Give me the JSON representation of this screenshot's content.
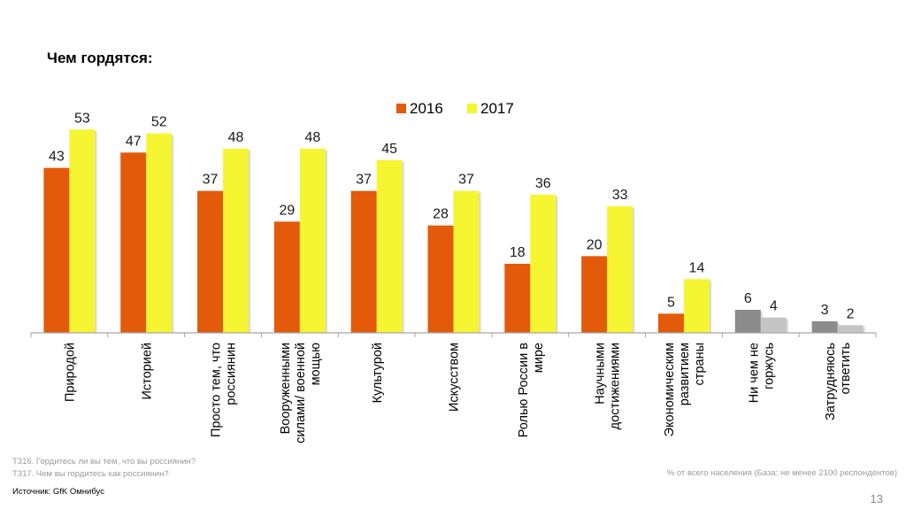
{
  "title": "Чем гордятся:",
  "notes": {
    "q1": "Т316. Гордитесь ли вы тем, что вы россиянин?",
    "q2": "Т317. Чем вы гордитесь как россиянин?",
    "base": "% от всего населения (База: не менее 2100  респондентов)",
    "source": "Источник: GfK Омнибус",
    "page": "13"
  },
  "colors": {
    "s2016": "#e35a0a",
    "s2017": "#f5f532",
    "grey_dark": "#8c8c8c",
    "grey_light": "#c4c4c4",
    "axis": "#a6a6a6"
  },
  "chart_data": {
    "type": "bar",
    "title": "",
    "legend_position": "top",
    "ylim": [
      0,
      60
    ],
    "categories": [
      [
        "Природой"
      ],
      [
        "Историей"
      ],
      [
        "Просто тем, что",
        "россиянин"
      ],
      [
        "Вооруженными",
        "силами/ военной",
        "мощью"
      ],
      [
        "Культурой"
      ],
      [
        "Искусством"
      ],
      [
        "Ролью России в",
        "мире"
      ],
      [
        "Научными",
        "достижениями"
      ],
      [
        "Экономическим",
        "развитием",
        "страны"
      ],
      [
        "Ни чем не",
        "горжусь"
      ],
      [
        "Затрудняюсь",
        "ответить"
      ]
    ],
    "series": [
      {
        "name": "2016",
        "values": [
          43,
          47,
          37,
          29,
          37,
          28,
          18,
          20,
          5,
          6,
          3
        ]
      },
      {
        "name": "2017",
        "values": [
          53,
          52,
          48,
          48,
          45,
          37,
          36,
          33,
          14,
          4,
          2
        ]
      }
    ],
    "grey_categories": [
      9,
      10
    ]
  }
}
